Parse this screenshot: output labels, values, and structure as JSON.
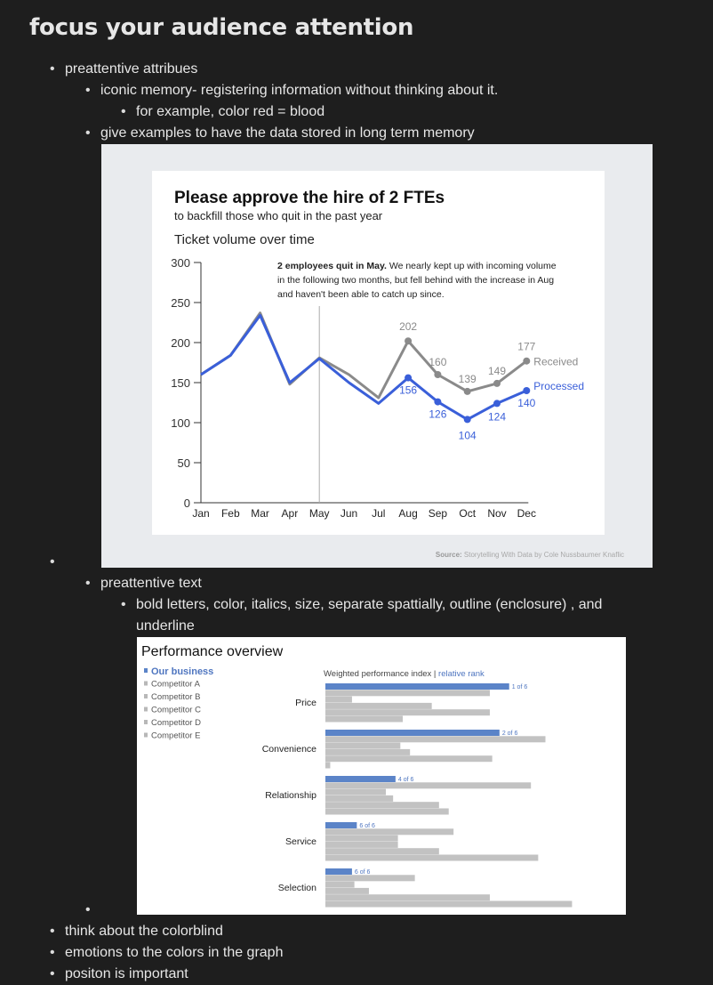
{
  "page": {
    "title": "focus your audience attention",
    "bullets": {
      "preattentive_attributes": "preattentive attribues",
      "iconic_memory": "iconic memory- registering information without thinking about it.",
      "color_example": "for example, color red = blood",
      "give_examples": "give examples to have the data stored in long term memory",
      "preattentive_text": "preattentive text",
      "text_attrs_line1": "bold letters, color, italics, size, separate spattially, outline (enclosure) , and",
      "text_attrs_line2": "underline",
      "colorblind": "think about the colorblind",
      "emotions": "emotions to the colors in the graph",
      "position": "positon is important"
    }
  },
  "chart_data": [
    {
      "type": "line",
      "title": "Please approve the hire of 2 FTEs",
      "subtitle": "to backfill those who quit in the past year",
      "chart_title": "Ticket volume over time",
      "annotation_bold": "2 employees quit in May.",
      "annotation_line1": " We nearly kept up with incoming volume",
      "annotation_line2": "in the following two months, but fell behind with the increase in Aug",
      "annotation_line3": "and haven't been able to catch up since.",
      "source_label": "Source:",
      "source_text": "Storytelling With Data by Cole Nussbaumer Knaflic",
      "categories": [
        "Jan",
        "Feb",
        "Mar",
        "Apr",
        "May",
        "Jun",
        "Jul",
        "Aug",
        "Sep",
        "Oct",
        "Nov",
        "Dec"
      ],
      "ylim": [
        0,
        300
      ],
      "yticks": [
        "0",
        "50",
        "100",
        "150",
        "200",
        "250",
        "300"
      ],
      "series": [
        {
          "name": "Received",
          "color": "#8a8a8a",
          "values": [
            160,
            184,
            237,
            148,
            181,
            160,
            131,
            202,
            160,
            139,
            149,
            177
          ],
          "labels": [
            "",
            "",
            "",
            "",
            "",
            "",
            "",
            "202",
            "160",
            "139",
            "149",
            "177"
          ]
        },
        {
          "name": "Processed",
          "color": "#3a5fd9",
          "values": [
            160,
            184,
            234,
            150,
            180,
            150,
            124,
            156,
            126,
            104,
            124,
            140
          ],
          "labels": [
            "",
            "",
            "",
            "",
            "",
            "",
            "",
            "156",
            "126",
            "104",
            "124",
            "140"
          ]
        }
      ],
      "marker": "May"
    },
    {
      "type": "bar",
      "title": "Performance overview",
      "axis_label": "Weighted performance index",
      "axis_label_sep": " | ",
      "axis_label_rank": "relative rank",
      "legend": [
        "Our business",
        "Competitor A",
        "Competitor B",
        "Competitor C",
        "Competitor D",
        "Competitor E"
      ],
      "categories": [
        "Price",
        "Convenience",
        "Relationship",
        "Service",
        "Selection"
      ],
      "ranks": [
        "1 of 6",
        "2 of 6",
        "4 of 6",
        "6 of 6",
        "6 of 6"
      ],
      "colors": {
        "ours": "#5b84c8",
        "competitors": "#c2c2c2",
        "rank_text": "#4f76c0"
      },
      "values": [
        [
          0.76,
          0.68,
          0.11,
          0.44,
          0.68,
          0.32
        ],
        [
          0.72,
          0.91,
          0.31,
          0.35,
          0.69,
          0.02
        ],
        [
          0.29,
          0.85,
          0.25,
          0.28,
          0.47,
          0.51
        ],
        [
          0.13,
          0.53,
          0.3,
          0.3,
          0.47,
          0.88
        ],
        [
          0.11,
          0.37,
          0.12,
          0.18,
          0.68,
          1.02
        ]
      ]
    }
  ]
}
